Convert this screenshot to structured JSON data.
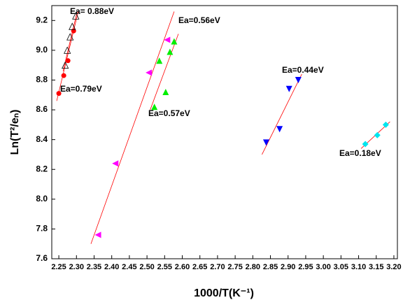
{
  "chart_data": {
    "type": "scatter",
    "x_label": "1000/T(K⁻¹)",
    "y_label": "Ln(T²/eₙ)",
    "xlim": [
      2.23,
      3.21
    ],
    "ylim": [
      7.6,
      9.3
    ],
    "xticks": [
      2.25,
      {
        "value": 2.3,
        "label": "2.30"
      },
      2.35,
      {
        "value": 2.4,
        "label": "2.40"
      },
      2.45,
      {
        "value": 2.5,
        "label": "2.50"
      },
      2.55,
      {
        "value": 2.6,
        "label": "2.60"
      },
      2.65,
      {
        "value": 2.7,
        "label": "2.70"
      },
      2.75,
      {
        "value": 2.8,
        "label": "2.80"
      },
      2.85,
      {
        "value": 2.9,
        "label": "2.90"
      },
      2.95,
      {
        "value": 3.0,
        "label": "3.00"
      },
      3.05,
      {
        "value": 3.1,
        "label": "3.10"
      },
      3.15,
      {
        "value": 3.2,
        "label": "3.20"
      }
    ],
    "yticks": [
      7.6,
      7.8,
      {
        "value": 8.0,
        "label": "8.0"
      },
      8.2,
      8.4,
      8.6,
      8.8,
      {
        "value": 9.0,
        "label": "9.0"
      },
      9.2
    ],
    "fit_color": "#ff0000",
    "series": [
      {
        "label": "Ea=0.79eV",
        "marker": "circle",
        "color": "#ff0000",
        "x": [
          2.25,
          2.264,
          2.276,
          2.292
        ],
        "values": [
          8.71,
          8.83,
          8.93,
          9.13
        ],
        "fit_x": [
          2.244,
          2.305
        ],
        "fit_y": [
          8.66,
          9.26
        ]
      },
      {
        "label": "Ea= 0.88eV",
        "marker": "open-triangle",
        "color": "#000000",
        "x": [
          2.268,
          2.274,
          2.282,
          2.288,
          2.298
        ],
        "values": [
          8.9,
          9.0,
          9.09,
          9.16,
          9.23
        ],
        "fit_x": [
          2.262,
          2.302
        ],
        "fit_y": [
          8.86,
          9.26
        ]
      },
      {
        "label": "Ea=0.56eV",
        "marker": "left-triangle",
        "color": "#ff00ff",
        "x": [
          2.361,
          2.41,
          2.505,
          2.557
        ],
        "values": [
          7.76,
          8.24,
          8.85,
          9.07
        ],
        "fit_x": [
          2.341,
          2.577
        ],
        "fit_y": [
          7.7,
          9.26
        ]
      },
      {
        "label": "Ea=0.57eV",
        "marker": "triangle",
        "color": "#00ee00",
        "x": [
          2.521,
          2.553,
          2.535,
          2.565,
          2.577
        ],
        "values": [
          8.62,
          8.72,
          8.93,
          8.99,
          9.06
        ],
        "fit_x": [
          2.509,
          2.589
        ],
        "fit_y": [
          8.6,
          9.11
        ]
      },
      {
        "label": "Ea=0.44eV",
        "marker": "down-triangle",
        "color": "#0000ff",
        "x": [
          2.838,
          2.876,
          2.903,
          2.929
        ],
        "values": [
          8.38,
          8.47,
          8.74,
          8.8
        ],
        "fit_x": [
          2.826,
          2.939
        ],
        "fit_y": [
          8.3,
          8.84
        ]
      },
      {
        "label": "Ea=0.18eV",
        "marker": "diamond",
        "color": "#00e5ee",
        "x": [
          3.119,
          3.153,
          3.177
        ],
        "values": [
          8.37,
          8.43,
          8.5
        ],
        "fit_x": [
          3.107,
          3.189
        ],
        "fit_y": [
          8.34,
          8.52
        ]
      }
    ]
  }
}
